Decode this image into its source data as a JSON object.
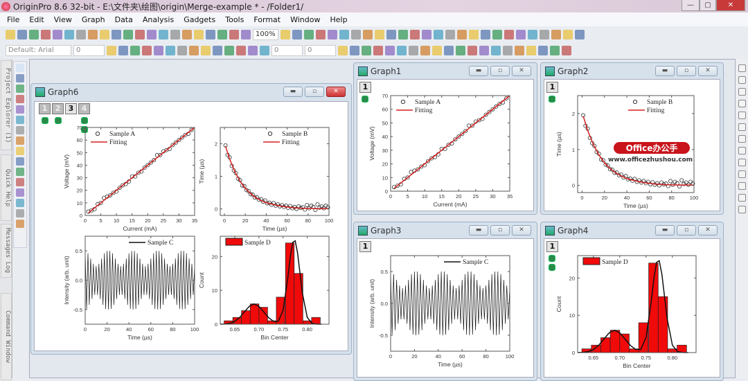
{
  "app": {
    "title": "OriginPro 8.6 32-bit - E:\\文件夹\\绘图\\origin\\Merge-example * - /Folder1/",
    "min": "—",
    "max": "▢",
    "close": "✕"
  },
  "menu": [
    "File",
    "Edit",
    "View",
    "Graph",
    "Data",
    "Analysis",
    "Gadgets",
    "Tools",
    "Format",
    "Window",
    "Help"
  ],
  "toolbar1": {
    "icons": [
      "new-project",
      "new-workbook",
      "new-excel",
      "new-graph",
      "new-matrix",
      "new-function",
      "new-layout",
      "new-notes",
      "new-3d",
      "import",
      "open",
      "open-template",
      "open-excel",
      "save",
      "save-template",
      "import-wizard",
      "import-ascii",
      "import-multiple",
      "recalculate",
      "script",
      "refresh"
    ],
    "zoom": "100%",
    "icons2": [
      "print",
      "copy-page",
      "export",
      "layer-management",
      "duplicate",
      "project-explorer",
      "results-log",
      "script-window",
      "command-window",
      "code-builder",
      "add-column",
      "sigma-stats",
      "descriptive-stats",
      "sort",
      "set-x",
      "set-y",
      "set-z",
      "set-error",
      "set-label",
      "disregard",
      "set-group",
      "set-subject",
      "move-left",
      "move-right",
      "move-begin",
      "move-end"
    ]
  },
  "toolbar2": {
    "font": "Default: Arial",
    "size": "0",
    "icons": [
      "bold",
      "italic",
      "underline",
      "superscript",
      "subscript",
      "supsub",
      "greek",
      "increase-font",
      "decrease-font",
      "left-justify",
      "right-justify",
      "font-color",
      "fill-color",
      "line-color"
    ],
    "line_width": "0",
    "border_width": "0",
    "icons2": [
      "pattern",
      "fill",
      "grid",
      "table",
      "cut",
      "copy",
      "paste",
      "rescale",
      "pointer",
      "merge",
      "unmerge",
      "spacing-h",
      "spacing-v",
      "lock",
      "rotate",
      "flip",
      "front",
      "back",
      "group",
      "ungroup"
    ]
  },
  "left_tabs": [
    "Project Explorer (1)",
    "Quick Help",
    "Messages Log",
    "Command Window"
  ],
  "palette": [
    "pointer",
    "zoom",
    "zoom-out",
    "data-reader",
    "screen-reader",
    "data-selector",
    "draw-data",
    "mask",
    "region",
    "text",
    "arrow",
    "line",
    "ellipse",
    "region-of-interest",
    "rotate",
    "insert"
  ],
  "right_strip": [
    "layer-a",
    "layer-b",
    "layer-c",
    "layer-d",
    "axis-l",
    "axis-b",
    "axis-r",
    "axis-t",
    "axis-all",
    "refresh",
    "table",
    "clock",
    "grid-view"
  ],
  "windows": {
    "graph6": {
      "title": "Graph6",
      "layers": [
        "1",
        "2",
        "3",
        "4"
      ]
    },
    "graph1": {
      "title": "Graph1",
      "layers": [
        "1"
      ]
    },
    "graph2": {
      "title": "Graph2",
      "layers": [
        "1"
      ]
    },
    "graph3": {
      "title": "Graph3",
      "layers": [
        "1"
      ]
    },
    "graph4": {
      "title": "Graph4",
      "layers": [
        "1"
      ]
    }
  },
  "watermark": {
    "brand": "Office办公手",
    "url": "www.officezhushou.com"
  },
  "colors": {
    "fit_red": "#d62020",
    "bar_red": "#f00a0a",
    "mark": "#333333"
  },
  "chart_data": [
    {
      "type": "scatter",
      "xlabel": "Current (mA)",
      "ylabel": "Voltage (mV)",
      "xlim": [
        0,
        35
      ],
      "ylim": [
        0,
        70
      ],
      "xticks": [
        0,
        5,
        10,
        15,
        20,
        25,
        30,
        35
      ],
      "yticks": [
        0,
        10,
        20,
        30,
        40,
        50,
        60,
        70
      ],
      "legend": "top-left",
      "grid": false,
      "series": [
        {
          "name": "Sample A",
          "kind": "scatter",
          "x": [
            1,
            2,
            3,
            4,
            5,
            6,
            7,
            8,
            9,
            10,
            11,
            12,
            13,
            14,
            15,
            16,
            17,
            18,
            19,
            20,
            21,
            22,
            23,
            24,
            25,
            26,
            27,
            28,
            29,
            30,
            31,
            32,
            33,
            34
          ],
          "y": [
            3,
            4,
            5,
            9,
            10,
            14,
            15,
            16,
            18,
            19,
            22,
            24,
            25,
            27,
            31,
            31,
            34,
            35,
            38,
            40,
            42,
            44,
            48,
            48,
            51,
            52,
            53,
            56,
            58,
            60,
            62,
            64,
            65,
            68
          ]
        },
        {
          "name": "Fitting",
          "kind": "line",
          "x": [
            1,
            35
          ],
          "y": [
            2,
            70
          ]
        }
      ]
    },
    {
      "type": "scatter",
      "xlabel": "Time (µs)",
      "ylabel": "Time (µs)",
      "xlim": [
        -4,
        100
      ],
      "ylim": [
        -0.2,
        2.5
      ],
      "xticks": [
        0,
        20,
        40,
        60,
        80,
        100
      ],
      "yticks": [
        0,
        1,
        2
      ],
      "legend": "top-right",
      "grid": false,
      "series": [
        {
          "name": "Sample B",
          "kind": "scatter",
          "x": [
            1,
            3,
            5,
            7,
            9,
            11,
            13,
            15,
            17,
            19,
            21,
            23,
            25,
            27,
            29,
            31,
            33,
            35,
            37,
            39,
            41,
            43,
            45,
            47,
            49,
            51,
            53,
            55,
            57,
            59,
            61,
            63,
            65,
            67,
            69,
            71,
            73,
            75,
            77,
            79,
            81,
            83,
            85,
            87,
            89,
            91,
            93,
            95,
            97,
            99
          ],
          "y": [
            1.95,
            1.66,
            1.58,
            1.32,
            1.18,
            1.1,
            0.93,
            0.88,
            0.72,
            0.7,
            0.58,
            0.55,
            0.45,
            0.44,
            0.35,
            0.36,
            0.28,
            0.3,
            0.22,
            0.26,
            0.17,
            0.19,
            0.13,
            0.18,
            0.1,
            0.14,
            0.08,
            0.12,
            0.06,
            0.1,
            0.03,
            0.09,
            0.02,
            0.06,
            0.0,
            0.08,
            0.03,
            0.05,
            -0.02,
            0.12,
            0.02,
            0.1,
            0.06,
            -0.03,
            0.14,
            0.04,
            0.08,
            0.02,
            0.1,
            0.05
          ]
        },
        {
          "name": "Fitting",
          "kind": "line",
          "x": [
            1,
            5,
            10,
            15,
            20,
            25,
            30,
            35,
            40,
            45,
            50,
            55,
            60,
            65,
            70,
            75,
            80,
            85,
            90,
            95,
            100
          ],
          "y": [
            1.93,
            1.53,
            1.14,
            0.85,
            0.63,
            0.47,
            0.35,
            0.26,
            0.19,
            0.15,
            0.11,
            0.08,
            0.06,
            0.04,
            0.03,
            0.02,
            0.02,
            0.01,
            0.01,
            0.01,
            0.01
          ]
        }
      ]
    },
    {
      "type": "line",
      "xlabel": "Time (µs)",
      "ylabel": "Intensity (arb. unit)",
      "xlim": [
        0,
        100
      ],
      "ylim": [
        -0.75,
        0.75
      ],
      "xticks": [
        0,
        20,
        40,
        60,
        80,
        100
      ],
      "yticks": [
        -0.5,
        0,
        0.5
      ],
      "ytick_labels": [
        "-0.5",
        "0.0",
        "0.5"
      ],
      "legend": "top-right",
      "grid": false,
      "series": [
        {
          "name": "Sample C",
          "kind": "trace",
          "x": [
            0,
            1.25,
            2.5,
            3.75,
            5,
            6.25,
            7.5,
            8.75,
            10,
            11.25,
            12.5,
            13.75,
            15,
            16.25,
            17.5,
            18.75,
            20,
            21.25,
            22.5,
            23.75,
            25,
            26.25,
            27.5,
            28.75,
            30,
            31.25,
            32.5,
            33.75,
            35,
            36.25,
            37.5,
            38.75,
            40,
            41.25,
            42.5,
            43.75,
            45,
            46.25,
            47.5,
            48.75,
            50,
            51.25,
            52.5,
            53.75,
            55,
            56.25,
            57.5,
            58.75,
            60,
            61.25,
            62.5,
            63.75,
            65,
            66.25,
            67.5,
            68.75,
            70,
            71.25,
            72.5,
            73.75,
            75,
            76.25,
            77.5,
            78.75,
            80,
            81.25,
            82.5,
            83.75,
            85,
            86.25,
            87.5,
            88.75,
            90,
            91.25,
            92.5,
            93.75,
            95,
            96.25,
            97.5,
            98.75,
            100
          ],
          "y": [
            0.5,
            -0.49,
            0.46,
            -0.42,
            0.37,
            -0.32,
            0.28,
            -0.25,
            0.24,
            -0.25,
            0.28,
            -0.32,
            0.37,
            -0.42,
            0.46,
            -0.49,
            0.5,
            -0.5,
            0.5,
            -0.49,
            0.46,
            -0.42,
            0.37,
            -0.32,
            0.28,
            -0.25,
            0.24,
            -0.25,
            0.28,
            -0.32,
            0.37,
            -0.42,
            0.46,
            -0.49,
            0.5,
            -0.5,
            0.5,
            -0.49,
            0.46,
            -0.42,
            0.37,
            -0.32,
            0.28,
            -0.25,
            0.24,
            -0.25,
            0.28,
            -0.32,
            0.37,
            -0.42,
            0.46,
            -0.49,
            0.5,
            -0.5,
            0.5,
            -0.49,
            0.46,
            -0.42,
            0.37,
            -0.32,
            0.28,
            -0.25,
            0.24,
            -0.25,
            0.28,
            -0.32,
            0.37,
            -0.42,
            0.46,
            -0.49,
            0.5,
            -0.5,
            0.5,
            -0.49,
            0.46,
            -0.42,
            0.37,
            -0.32,
            0.28,
            -0.25,
            0.24
          ]
        }
      ]
    },
    {
      "type": "bar",
      "xlabel": "Bin Center",
      "ylabel": "Count",
      "xlim": [
        0.62,
        0.845
      ],
      "ylim": [
        0,
        26
      ],
      "xticks": [
        0.65,
        0.7,
        0.75,
        0.8
      ],
      "xtick_labels": [
        "0.65",
        "0.70",
        "0.75",
        "0.80"
      ],
      "yticks": [
        0,
        10,
        20
      ],
      "legend": "top-left",
      "grid": false,
      "bin_width": 0.018,
      "series": [
        {
          "name": "Sample D",
          "kind": "bar",
          "x": [
            0.637,
            0.655,
            0.673,
            0.691,
            0.709,
            0.727,
            0.745,
            0.764,
            0.782,
            0.8,
            0.818
          ],
          "y": [
            1,
            2,
            4,
            6,
            5,
            1,
            8,
            24,
            15,
            1,
            2
          ]
        },
        {
          "kind": "fit",
          "x": [
            0.62,
            0.63,
            0.64,
            0.65,
            0.66,
            0.67,
            0.68,
            0.69,
            0.7,
            0.71,
            0.72,
            0.73,
            0.74,
            0.75,
            0.76,
            0.765,
            0.77,
            0.775,
            0.78,
            0.79,
            0.8,
            0.81,
            0.82,
            0.83
          ],
          "y": [
            0.01,
            0.07,
            0.26,
            0.81,
            1.95,
            3.64,
            5.29,
            6,
            5.29,
            3.64,
            1.95,
            0.85,
            0.83,
            4.05,
            13.9,
            20.0,
            24.2,
            24.65,
            21.1,
            9.2,
            2.0,
            0.22,
            0.01,
            0
          ]
        }
      ]
    }
  ]
}
